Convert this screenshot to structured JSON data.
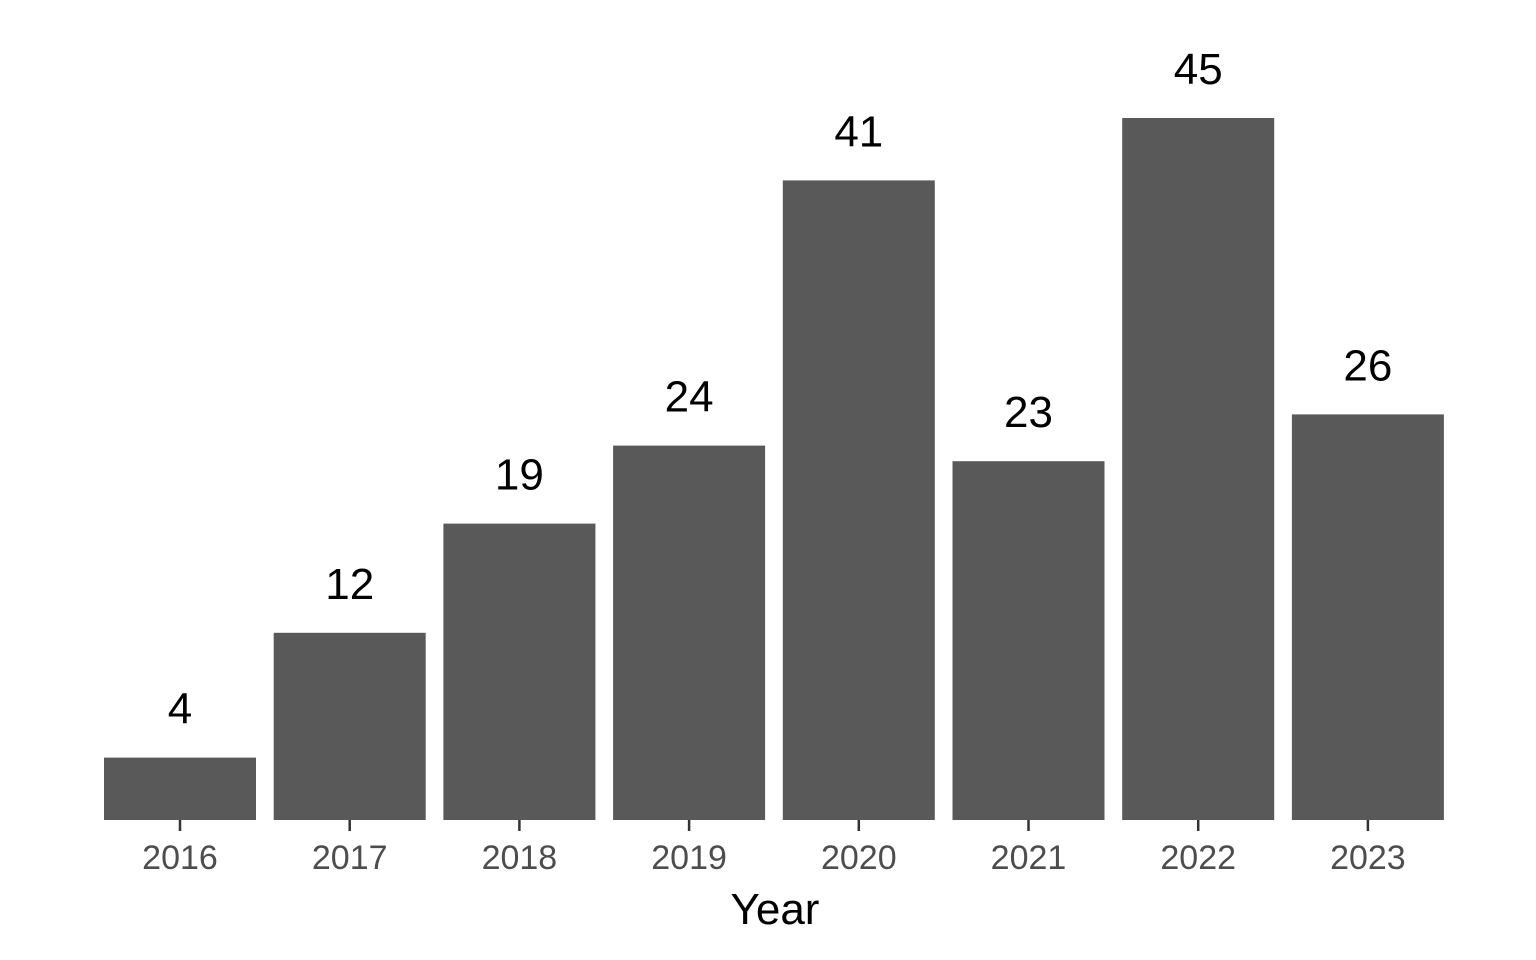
{
  "chart_data": {
    "type": "bar",
    "categories": [
      "2016",
      "2017",
      "2018",
      "2019",
      "2020",
      "2021",
      "2022",
      "2023"
    ],
    "values": [
      4,
      12,
      19,
      24,
      41,
      23,
      45,
      26
    ],
    "data_labels": [
      "4",
      "12",
      "19",
      "24",
      "41",
      "23",
      "45",
      "26"
    ],
    "title": "",
    "xlabel": "Year",
    "ylabel": "",
    "ylim": [
      0,
      45
    ],
    "grid": false,
    "legend": "none",
    "bar_color": "#595959"
  }
}
